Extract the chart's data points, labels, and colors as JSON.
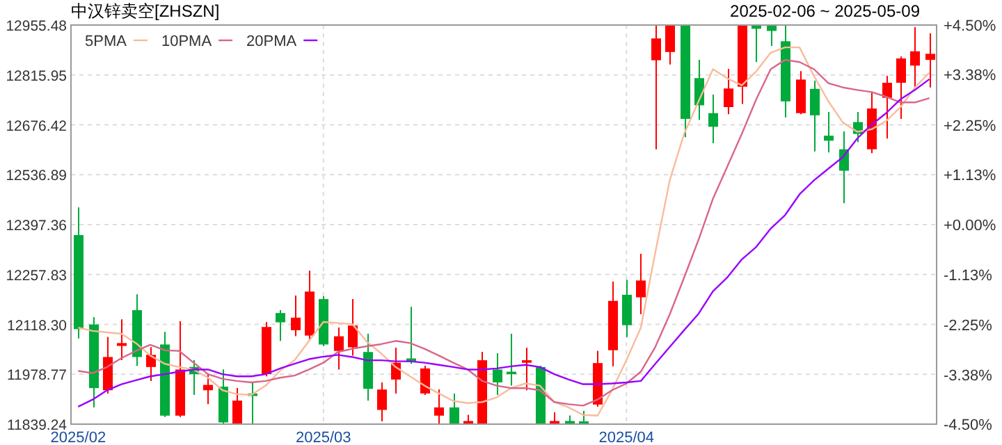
{
  "chart_data": {
    "type": "candlestick",
    "title": "中汉锌卖空[ZHSZN]",
    "subtitle": "2025-02-06 ~ 2025-05-09",
    "categories": [
      "2025/02",
      null,
      null,
      null,
      null,
      null,
      null,
      null,
      null,
      null,
      null,
      null,
      null,
      null,
      null,
      null,
      null,
      "2025/03",
      null,
      null,
      null,
      null,
      null,
      null,
      null,
      null,
      null,
      null,
      null,
      null,
      null,
      null,
      null,
      null,
      null,
      null,
      null,
      null,
      "2025/04",
      null,
      null,
      null,
      null,
      null,
      null,
      null,
      null,
      null,
      null,
      null,
      null,
      null,
      null,
      null,
      null,
      null,
      null,
      null,
      null,
      null
    ],
    "ohlc": [
      [
        12368,
        12445,
        12079,
        12105
      ],
      [
        12118,
        12138,
        11886,
        11940
      ],
      [
        11934,
        12083,
        11925,
        12027
      ],
      [
        12058,
        12132,
        12018,
        12066
      ],
      [
        12158,
        12202,
        12002,
        12027
      ],
      [
        11999,
        12054,
        11960,
        12033
      ],
      [
        12062,
        12097,
        11859,
        11863
      ],
      [
        11863,
        12127,
        11859,
        11992
      ],
      [
        11999,
        12018,
        11921,
        11979
      ],
      [
        11934,
        11979,
        11895,
        11949
      ],
      [
        11944,
        11992,
        11841,
        11844
      ],
      [
        11841,
        11940,
        11840,
        11905
      ],
      [
        11925,
        11957,
        11840,
        11918
      ],
      [
        11979,
        12124,
        11973,
        12111
      ],
      [
        12150,
        12158,
        12072,
        12124
      ],
      [
        12102,
        12199,
        12085,
        12137
      ],
      [
        12087,
        12268,
        12072,
        12210
      ],
      [
        12189,
        12197,
        12057,
        12062
      ],
      [
        12044,
        12109,
        11992,
        12085
      ],
      [
        12054,
        12189,
        12031,
        12115
      ],
      [
        12041,
        12092,
        11905,
        11938
      ],
      [
        11879,
        11956,
        11847,
        11936
      ],
      [
        11964,
        12053,
        11925,
        12011
      ],
      [
        12023,
        12167,
        12008,
        12013
      ],
      [
        11925,
        12002,
        11921,
        11995
      ],
      [
        11863,
        11936,
        11840,
        11886
      ],
      [
        11886,
        11925,
        11840,
        11840
      ],
      [
        11840,
        11865,
        11840,
        11848
      ],
      [
        11840,
        12041,
        11840,
        12018
      ],
      [
        11992,
        12037,
        11921,
        11956
      ],
      [
        11986,
        12092,
        11947,
        11979
      ],
      [
        12011,
        12053,
        11934,
        12018
      ],
      [
        11999,
        12002,
        11840,
        11840
      ],
      [
        11840,
        11872,
        11840,
        11848
      ],
      [
        11848,
        11863,
        11840,
        11840
      ],
      [
        11847,
        11876,
        11840,
        11841
      ],
      [
        11894,
        12044,
        11888,
        12010
      ],
      [
        12046,
        12238,
        12001,
        12184
      ],
      [
        12201,
        12243,
        12083,
        12116
      ],
      [
        12194,
        12315,
        12147,
        12241
      ],
      [
        12857,
        12955.48,
        12608,
        12918
      ],
      [
        12880,
        12955.48,
        12845,
        12955.48
      ],
      [
        12955.48,
        12955.48,
        12642,
        12693
      ],
      [
        12807,
        12858,
        12690,
        12731
      ],
      [
        12709,
        12761,
        12625,
        12671
      ],
      [
        12726,
        12833,
        12706,
        12778
      ],
      [
        12783,
        12955.48,
        12735,
        12955.48
      ],
      [
        12955.48,
        12955.48,
        12852,
        12945
      ],
      [
        12955.48,
        12955.48,
        12897,
        12939
      ],
      [
        12910,
        12955.48,
        12697,
        12742
      ],
      [
        12709,
        12826,
        12706,
        12803
      ],
      [
        12777,
        12800,
        12602,
        12703
      ],
      [
        12646,
        12712,
        12599,
        12632
      ],
      [
        12608,
        12658,
        12457,
        12548
      ],
      [
        12684,
        12712,
        12628,
        12651
      ],
      [
        12608,
        12768,
        12597,
        12722
      ],
      [
        12752,
        12813,
        12638,
        12794
      ],
      [
        12794,
        12867,
        12693,
        12862
      ],
      [
        12842,
        12949,
        12781,
        12882
      ],
      [
        12858,
        12932,
        12781,
        12875
      ]
    ],
    "colors": [
      "#00aa3b",
      "#00aa3b",
      "#ff0000",
      "#ff0000",
      "#00aa3b",
      "#ff0000",
      "#00aa3b",
      "#ff0000",
      "#00aa3b",
      "#ff0000",
      "#00aa3b",
      "#ff0000",
      "#00aa3b",
      "#ff0000",
      "#00aa3b",
      "#ff0000",
      "#ff0000",
      "#00aa3b",
      "#ff0000",
      "#ff0000",
      "#00aa3b",
      "#ff0000",
      "#ff0000",
      "#00aa3b",
      "#ff0000",
      "#ff0000",
      "#00aa3b",
      "#ff0000",
      "#ff0000",
      "#00aa3b",
      "#00aa3b",
      "#ff0000",
      "#00aa3b",
      "#ff0000",
      "#00aa3b",
      "#00aa3b",
      "#ff0000",
      "#ff0000",
      "#00aa3b",
      "#ff0000",
      "#ff0000",
      "#ff0000",
      "#00aa3b",
      "#00aa3b",
      "#00aa3b",
      "#ff0000",
      "#ff0000",
      "#00aa3b",
      "#00aa3b",
      "#00aa3b",
      "#ff0000",
      "#00aa3b",
      "#00aa3b",
      "#00aa3b",
      "#00aa3b",
      "#ff0000",
      "#ff0000",
      "#ff0000",
      "#ff0000",
      "#ff0000"
    ],
    "series": [
      {
        "name": "5PMA",
        "type": "line",
        "color": "#f9bb9b",
        "values": [
          12109,
          12100,
          12096,
          12092,
          12066,
          12031,
          12008,
          11999,
          11992,
          11969,
          11934,
          11923,
          11921,
          11947,
          11989,
          12018,
          12072,
          12125,
          12122,
          12119,
          12070,
          12037,
          11999,
          11973,
          11947,
          11925,
          11904,
          11898,
          11901,
          11914,
          11940,
          11953,
          11947,
          11901,
          11886,
          11865,
          11863,
          11934,
          12018,
          12109,
          12319,
          12521,
          12651,
          12742,
          12832,
          12806,
          12787,
          12826,
          12878,
          12893,
          12893,
          12813,
          12742,
          12683,
          12657,
          12664,
          12687,
          12726,
          12781,
          12822
        ]
      },
      {
        "name": "10PMA",
        "type": "line",
        "color": "#d9668a",
        "values": [
          11988,
          11982,
          11999,
          12024,
          12044,
          12061,
          12046,
          12044,
          12011,
          11979,
          11966,
          11960,
          11956,
          11960,
          11969,
          11975,
          11992,
          12011,
          12041,
          12050,
          12057,
          12063,
          12072,
          12066,
          12050,
          12031,
          12011,
          11992,
          11960,
          11947,
          11940,
          11940,
          11934,
          11901,
          11895,
          11891,
          11908,
          11934,
          11953,
          11986,
          12055,
          12146,
          12249,
          12355,
          12470,
          12560,
          12651,
          12748,
          12832,
          12858,
          12852,
          12832,
          12793,
          12781,
          12774,
          12768,
          12755,
          12739,
          12739,
          12751
        ]
      },
      {
        "name": "20PMA",
        "type": "line",
        "color": "#9900ff",
        "values": [
          11888,
          11908,
          11934,
          11951,
          11962,
          11973,
          11979,
          11986,
          11992,
          11992,
          11979,
          11973,
          11973,
          11979,
          11995,
          12008,
          12021,
          12028,
          12033,
          12027,
          12018,
          12018,
          12015,
          12015,
          12011,
          12005,
          11999,
          11992,
          11992,
          11995,
          12001,
          12005,
          11999,
          11979,
          11964,
          11951,
          11951,
          11953,
          11956,
          11960,
          12008,
          12055,
          12102,
          12148,
          12211,
          12250,
          12300,
          12335,
          12386,
          12424,
          12482,
          12521,
          12554,
          12586,
          12638,
          12677,
          12709,
          12748,
          12774,
          12804
        ]
      }
    ],
    "ylim": [
      11839.24,
      12955.48
    ],
    "yticks": [
      12955.48,
      12815.95,
      12676.42,
      12536.89,
      12397.36,
      12257.83,
      {
        "value": 12118.3,
        "label": "12118.30"
      },
      11978.77,
      11839.24
    ],
    "y2lim": [
      -4.5,
      4.5
    ],
    "y2ticks": [
      {
        "value": 4.5,
        "label": "+4.50%"
      },
      {
        "value": 3.38,
        "label": "+3.38%"
      },
      {
        "value": 2.25,
        "label": "+2.25%"
      },
      {
        "value": 1.13,
        "label": "+1.13%"
      },
      {
        "value": 0,
        "label": "+0.00%"
      },
      {
        "value": -1.13,
        "label": "-1.13%"
      },
      {
        "value": -2.25,
        "label": "-2.25%"
      },
      {
        "value": -3.38,
        "label": "-3.38%"
      },
      {
        "value": -4.5,
        "label": "-4.50%"
      }
    ],
    "grid": true,
    "legend": "top left"
  }
}
